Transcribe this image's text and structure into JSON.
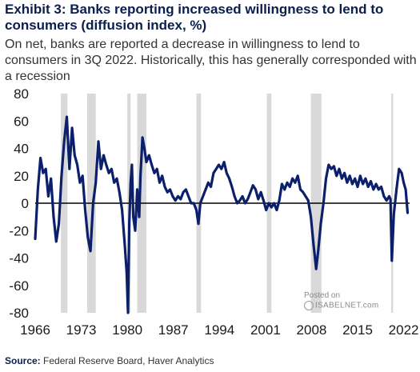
{
  "title": "Exhibit 3: Banks reporting increased willingness to lend to consumers (diffusion index, %)",
  "subtitle": "On net, banks are reported a decrease in willingness to lend to consumers in 3Q 2022. Historically, this has generally corresponded with a recession",
  "source_label": "Source:",
  "source_text": "Federal Reserve Board, Haver Analytics",
  "watermark": {
    "line1": "Posted on",
    "line2": "ISABELNET.com"
  },
  "colors": {
    "line": "#0b1f6b",
    "recession": "#d9d9d9",
    "zero_line": "#000000",
    "title": "#0b1f4d"
  },
  "chart_data": {
    "type": "line",
    "title": "Exhibit 3: Banks reporting increased willingness to lend to consumers (diffusion index, %)",
    "xlabel": "",
    "ylabel": "",
    "xlim": [
      1966,
      2022.9
    ],
    "ylim": [
      -80,
      80
    ],
    "x_ticks": [
      1966,
      1973,
      1980,
      1987,
      1994,
      2001,
      2008,
      2015,
      2022
    ],
    "y_ticks": [
      80,
      60,
      40,
      20,
      0,
      -20,
      -40,
      -60,
      -80
    ],
    "grid": false,
    "legend": "none",
    "recessions": [
      [
        1969.9,
        1970.9
      ],
      [
        1973.9,
        1975.2
      ],
      [
        1980.0,
        1980.5
      ],
      [
        1981.5,
        1982.9
      ],
      [
        1990.5,
        1991.2
      ],
      [
        2001.2,
        2001.9
      ],
      [
        2007.9,
        2009.5
      ],
      [
        2020.1,
        2020.4
      ]
    ],
    "series": [
      {
        "values": [
          [
            1966.0,
            -26
          ],
          [
            1966.4,
            10
          ],
          [
            1966.8,
            33
          ],
          [
            1967.2,
            22
          ],
          [
            1967.6,
            25
          ],
          [
            1968.0,
            5
          ],
          [
            1968.4,
            18
          ],
          [
            1968.8,
            -10
          ],
          [
            1969.2,
            -28
          ],
          [
            1969.6,
            -15
          ],
          [
            1970.0,
            20
          ],
          [
            1970.4,
            45
          ],
          [
            1970.8,
            63
          ],
          [
            1971.2,
            25
          ],
          [
            1971.6,
            55
          ],
          [
            1972.0,
            35
          ],
          [
            1972.4,
            28
          ],
          [
            1972.8,
            15
          ],
          [
            1973.2,
            20
          ],
          [
            1973.6,
            -5
          ],
          [
            1974.0,
            -25
          ],
          [
            1974.4,
            -35
          ],
          [
            1974.8,
            0
          ],
          [
            1975.2,
            15
          ],
          [
            1975.6,
            45
          ],
          [
            1976.0,
            25
          ],
          [
            1976.4,
            35
          ],
          [
            1976.8,
            28
          ],
          [
            1977.2,
            22
          ],
          [
            1977.6,
            25
          ],
          [
            1978.0,
            15
          ],
          [
            1978.4,
            18
          ],
          [
            1978.8,
            8
          ],
          [
            1979.2,
            -5
          ],
          [
            1979.6,
            -30
          ],
          [
            1979.9,
            -50
          ],
          [
            1980.1,
            -80
          ],
          [
            1980.3,
            -15
          ],
          [
            1980.5,
            15
          ],
          [
            1980.7,
            28
          ],
          [
            1980.9,
            -10
          ],
          [
            1981.2,
            -20
          ],
          [
            1981.5,
            10
          ],
          [
            1981.8,
            -10
          ],
          [
            1982.0,
            20
          ],
          [
            1982.3,
            48
          ],
          [
            1982.6,
            40
          ],
          [
            1982.9,
            30
          ],
          [
            1983.3,
            35
          ],
          [
            1983.7,
            28
          ],
          [
            1984.1,
            22
          ],
          [
            1984.5,
            25
          ],
          [
            1984.9,
            15
          ],
          [
            1985.3,
            20
          ],
          [
            1985.7,
            12
          ],
          [
            1986.1,
            8
          ],
          [
            1986.5,
            10
          ],
          [
            1986.9,
            5
          ],
          [
            1987.3,
            2
          ],
          [
            1987.7,
            5
          ],
          [
            1988.1,
            3
          ],
          [
            1988.5,
            8
          ],
          [
            1988.9,
            10
          ],
          [
            1989.3,
            5
          ],
          [
            1989.7,
            0
          ],
          [
            1990.1,
            0
          ],
          [
            1990.5,
            -5
          ],
          [
            1990.8,
            -15
          ],
          [
            1991.1,
            0
          ],
          [
            1991.5,
            5
          ],
          [
            1991.9,
            10
          ],
          [
            1992.3,
            15
          ],
          [
            1992.7,
            12
          ],
          [
            1993.1,
            22
          ],
          [
            1993.5,
            25
          ],
          [
            1993.9,
            28
          ],
          [
            1994.3,
            25
          ],
          [
            1994.7,
            30
          ],
          [
            1995.1,
            22
          ],
          [
            1995.5,
            18
          ],
          [
            1995.9,
            12
          ],
          [
            1996.3,
            5
          ],
          [
            1996.7,
            0
          ],
          [
            1997.1,
            2
          ],
          [
            1997.5,
            5
          ],
          [
            1997.9,
            0
          ],
          [
            1998.3,
            3
          ],
          [
            1998.7,
            8
          ],
          [
            1999.1,
            13
          ],
          [
            1999.5,
            10
          ],
          [
            1999.9,
            3
          ],
          [
            2000.3,
            8
          ],
          [
            2000.7,
            2
          ],
          [
            2001.1,
            -5
          ],
          [
            2001.5,
            0
          ],
          [
            2001.9,
            -3
          ],
          [
            2002.3,
            0
          ],
          [
            2002.7,
            -5
          ],
          [
            2003.1,
            2
          ],
          [
            2003.5,
            14
          ],
          [
            2003.9,
            10
          ],
          [
            2004.3,
            15
          ],
          [
            2004.7,
            12
          ],
          [
            2005.1,
            18
          ],
          [
            2005.5,
            15
          ],
          [
            2005.9,
            20
          ],
          [
            2006.3,
            10
          ],
          [
            2006.7,
            8
          ],
          [
            2007.1,
            5
          ],
          [
            2007.5,
            2
          ],
          [
            2007.9,
            -10
          ],
          [
            2008.3,
            -30
          ],
          [
            2008.7,
            -48
          ],
          [
            2009.0,
            -35
          ],
          [
            2009.4,
            -15
          ],
          [
            2009.8,
            0
          ],
          [
            2010.2,
            18
          ],
          [
            2010.6,
            28
          ],
          [
            2011.0,
            25
          ],
          [
            2011.4,
            27
          ],
          [
            2011.8,
            20
          ],
          [
            2012.2,
            25
          ],
          [
            2012.6,
            18
          ],
          [
            2013.0,
            22
          ],
          [
            2013.4,
            15
          ],
          [
            2013.8,
            20
          ],
          [
            2014.2,
            14
          ],
          [
            2014.6,
            18
          ],
          [
            2015.0,
            12
          ],
          [
            2015.4,
            20
          ],
          [
            2015.8,
            14
          ],
          [
            2016.2,
            18
          ],
          [
            2016.6,
            12
          ],
          [
            2017.0,
            16
          ],
          [
            2017.4,
            10
          ],
          [
            2017.8,
            14
          ],
          [
            2018.2,
            10
          ],
          [
            2018.6,
            12
          ],
          [
            2019.0,
            5
          ],
          [
            2019.4,
            2
          ],
          [
            2019.8,
            5
          ],
          [
            2020.0,
            3
          ],
          [
            2020.2,
            -42
          ],
          [
            2020.5,
            -8
          ],
          [
            2020.9,
            10
          ],
          [
            2021.3,
            25
          ],
          [
            2021.7,
            22
          ],
          [
            2022.0,
            15
          ],
          [
            2022.3,
            10
          ],
          [
            2022.6,
            -7
          ]
        ]
      }
    ]
  }
}
